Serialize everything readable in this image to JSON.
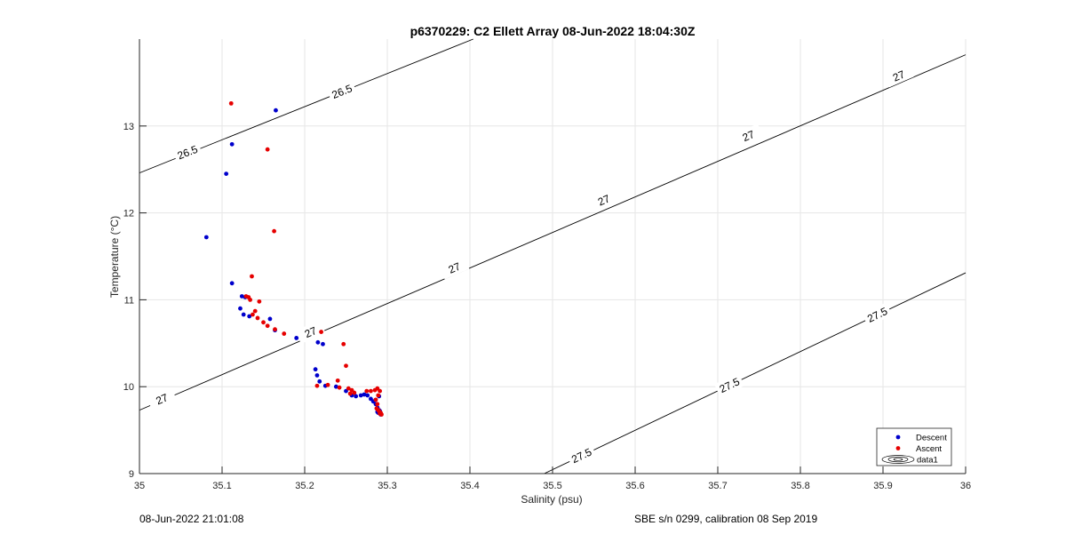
{
  "chart_data": {
    "type": "scatter",
    "title": "p6370229: C2 Ellett Array 08-Jun-2022 18:04:30Z",
    "xlabel": "Salinity (psu)",
    "ylabel": "Temperature (°C)",
    "xlim": [
      35,
      36
    ],
    "ylim": [
      9,
      14
    ],
    "xticks": [
      "35",
      "35.1",
      "35.2",
      "35.3",
      "35.4",
      "35.5",
      "35.6",
      "35.7",
      "35.8",
      "35.9",
      "36"
    ],
    "yticks": [
      "9",
      "10",
      "11",
      "12",
      "13"
    ],
    "grid": true,
    "legend_position": "bottom-right",
    "legend": [
      "Descent",
      "Ascent",
      "data1"
    ],
    "colors": {
      "descent": "#0000cc",
      "ascent": "#e60000",
      "contour": "#000000",
      "grid": "#e6e6e6",
      "axis": "#262626"
    },
    "contours": [
      {
        "label": "26.5",
        "points": [
          [
            35.0,
            12.46
          ],
          [
            35.404,
            14.0
          ]
        ],
        "labels_at": [
          [
            35.058,
            12.7
          ],
          [
            35.245,
            13.4
          ]
        ]
      },
      {
        "label": "27",
        "points": [
          [
            35.0,
            9.73
          ],
          [
            36.0,
            13.82
          ]
        ],
        "labels_at": [
          [
            35.027,
            9.86
          ],
          [
            35.207,
            10.63
          ],
          [
            35.381,
            11.37
          ],
          [
            35.562,
            12.15
          ],
          [
            35.737,
            12.89
          ],
          [
            35.919,
            13.58
          ]
        ]
      },
      {
        "label": "27.5",
        "points": [
          [
            35.49,
            9.0
          ],
          [
            36.0,
            11.31
          ]
        ],
        "labels_at": [
          [
            35.535,
            9.21
          ],
          [
            35.714,
            10.02
          ],
          [
            35.893,
            10.83
          ]
        ]
      }
    ],
    "series": [
      {
        "name": "Descent",
        "x": [
          35.165,
          35.112,
          35.105,
          35.081,
          35.112,
          35.124,
          35.128,
          35.122,
          35.126,
          35.133,
          35.158,
          35.164,
          35.19,
          35.216,
          35.222,
          35.213,
          35.215,
          35.218,
          35.225,
          35.238,
          35.25,
          35.257,
          35.262,
          35.268,
          35.272,
          35.276,
          35.28,
          35.283,
          35.286,
          35.288,
          35.29,
          35.288,
          35.289,
          35.29,
          35.291,
          35.292
        ],
        "y": [
          13.18,
          12.79,
          12.45,
          11.72,
          11.19,
          11.04,
          11.03,
          10.9,
          10.83,
          10.81,
          10.78,
          10.65,
          10.56,
          10.51,
          10.49,
          10.2,
          10.13,
          10.06,
          10.01,
          10.0,
          9.95,
          9.9,
          9.89,
          9.9,
          9.91,
          9.9,
          9.86,
          9.83,
          9.8,
          9.76,
          9.73,
          9.71,
          9.7,
          9.89,
          9.72,
          9.68
        ]
      },
      {
        "name": "Ascent",
        "x": [
          35.111,
          35.155,
          35.163,
          35.136,
          35.129,
          35.132,
          35.134,
          35.145,
          35.14,
          35.137,
          35.143,
          35.15,
          35.155,
          35.164,
          35.175,
          35.22,
          35.247,
          35.25,
          35.215,
          35.228,
          35.24,
          35.242,
          35.253,
          35.257,
          35.255,
          35.26,
          35.275,
          35.28,
          35.285,
          35.288,
          35.291,
          35.286,
          35.288,
          35.287,
          35.289,
          35.29,
          35.292,
          35.289,
          35.291,
          35.293
        ],
        "y": [
          13.26,
          12.73,
          11.79,
          11.27,
          11.04,
          11.03,
          11.0,
          10.98,
          10.87,
          10.83,
          10.79,
          10.74,
          10.7,
          10.66,
          10.61,
          10.63,
          10.49,
          10.24,
          10.01,
          10.02,
          10.07,
          9.99,
          9.98,
          9.96,
          9.92,
          9.93,
          9.95,
          9.95,
          9.96,
          9.98,
          9.95,
          9.85,
          9.8,
          9.75,
          9.73,
          9.72,
          9.7,
          9.9,
          9.69,
          9.68
        ]
      }
    ]
  },
  "footer": {
    "left": "08-Jun-2022 21:01:08",
    "right": "SBE s/n 0299, calibration 08 Sep 2019"
  }
}
